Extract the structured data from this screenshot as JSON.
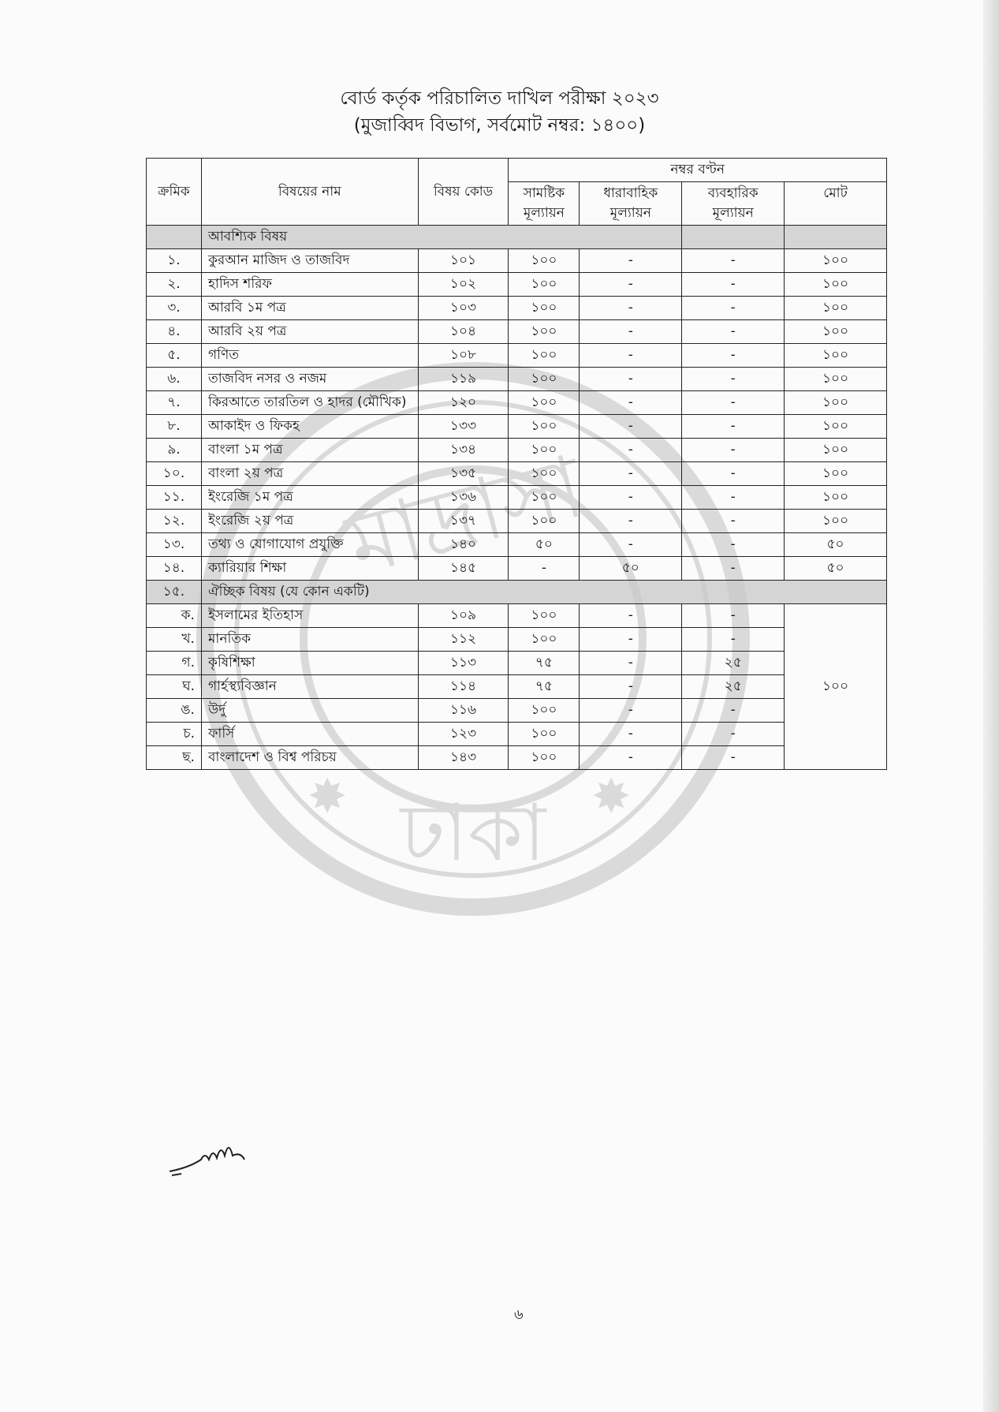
{
  "title": "বোর্ড কর্তৃক পরিচালিত দাখিল পরীক্ষা ২০২৩",
  "subtitle": "(মুজাব্বিদ বিভাগ, সর্বমোট নম্বর: ১৪০০)",
  "header": {
    "serial": "ক্রমিক",
    "subject": "বিষয়ের নাম",
    "code": "বিষয় কোড",
    "distribution": "নম্বর বণ্টন",
    "summative": "সামষ্টিক মূল্যায়ন",
    "continuous": "ধারাবাহিক মূল্যায়ন",
    "practical": "ব্যবহারিক মূল্যায়ন",
    "total": "মোট"
  },
  "compulsory": {
    "label": "আবশ্যিক বিষয়",
    "rows": [
      [
        "১.",
        "কুরআন মাজিদ ও তাজবিদ",
        "১০১",
        "১০০",
        "-",
        "-",
        "১০০"
      ],
      [
        "২.",
        "হাদিস শরিফ",
        "১০২",
        "১০০",
        "-",
        "-",
        "১০০"
      ],
      [
        "৩.",
        "আরবি ১ম পত্র",
        "১০৩",
        "১০০",
        "-",
        "-",
        "১০০"
      ],
      [
        "৪.",
        "আরবি ২য় পত্র",
        "১০৪",
        "১০০",
        "-",
        "-",
        "১০০"
      ],
      [
        "৫.",
        "গণিত",
        "১০৮",
        "১০০",
        "-",
        "-",
        "১০০"
      ],
      [
        "৬.",
        "তাজবিদ নসর ও নজম",
        "১১৯",
        "১০০",
        "-",
        "-",
        "১০০"
      ],
      [
        "৭.",
        "কিরআতে তারতিল ও হাদর (মৌখিক)",
        "১২০",
        "১০০",
        "-",
        "-",
        "১০০"
      ],
      [
        "৮.",
        "আকাইদ ও ফিকহ",
        "১৩৩",
        "১০০",
        "-",
        "-",
        "১০০"
      ],
      [
        "৯.",
        "বাংলা ১ম পত্র",
        "১৩৪",
        "১০০",
        "-",
        "-",
        "১০০"
      ],
      [
        "১০.",
        "বাংলা ২য় পত্র",
        "১৩৫",
        "১০০",
        "-",
        "-",
        "১০০"
      ],
      [
        "১১.",
        "ইংরেজি ১ম পত্র",
        "১৩৬",
        "১০০",
        "-",
        "-",
        "১০০"
      ],
      [
        "১২.",
        "ইংরেজি ২য় পত্র",
        "১৩৭",
        "১০০",
        "-",
        "-",
        "১০০"
      ],
      [
        "১৩.",
        "তথ্য ও যোগাযোগ প্রযুক্তি",
        "১৪০",
        "৫০",
        "-",
        "-",
        "৫০"
      ],
      [
        "১৪.",
        "ক্যারিয়ার শিক্ষা",
        "১৪৫",
        "-",
        "৫০",
        "-",
        "৫০"
      ]
    ]
  },
  "optional": {
    "serial": "১৫.",
    "label": "ঐচ্ছিক বিষয় (যে কোন একটি)",
    "total": "১০০",
    "rows": [
      [
        "ক.",
        "ইসলামের ইতিহাস",
        "১০৯",
        "১০০",
        "-",
        "-"
      ],
      [
        "খ.",
        "মানতিক",
        "১১২",
        "১০০",
        "-",
        "-"
      ],
      [
        "গ.",
        "কৃষিশিক্ষা",
        "১১৩",
        "৭৫",
        "-",
        "২৫"
      ],
      [
        "ঘ.",
        "গার্হস্থ্যবিজ্ঞান",
        "১১৪",
        "৭৫",
        "-",
        "২৫"
      ],
      [
        "ঙ.",
        "উর্দু",
        "১১৬",
        "১০০",
        "-",
        "-"
      ],
      [
        "চ.",
        "ফার্সি",
        "১২৩",
        "১০০",
        "-",
        "-"
      ],
      [
        "ছ.",
        "বাংলাদেশ ও বিশ্ব পরিচয়",
        "১৪৩",
        "১০০",
        "-",
        "-"
      ]
    ]
  },
  "stamp_text": "ঢাকা",
  "page_number": "৬"
}
